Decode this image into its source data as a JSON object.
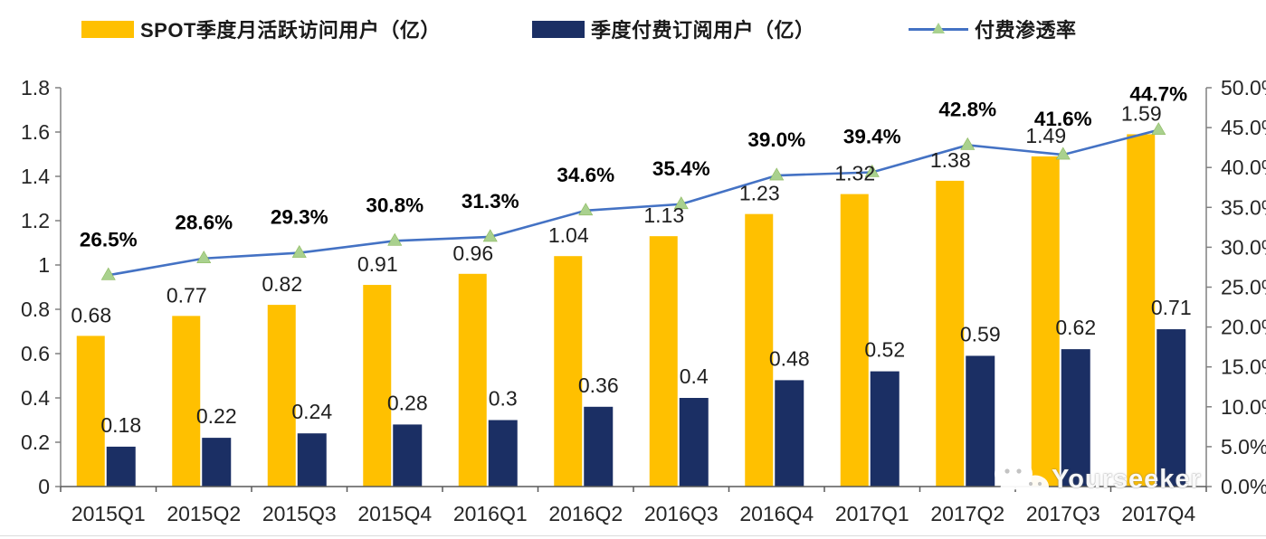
{
  "colors": {
    "mau_bar": "#FFC000",
    "sub_bar": "#1B2F64",
    "line": "#4472C4",
    "marker": "#A9D18E",
    "axis_side": "#808080",
    "axis_bottom": "#595959",
    "tick_text": "#262626",
    "label_text": "#1f1f1f",
    "pct_text": "#000000"
  },
  "legend": [
    {
      "label": "SPOT季度月活跃访问用户（亿）",
      "type": "bar",
      "color": "#FFC000"
    },
    {
      "label": "季度付费订阅用户（亿）",
      "type": "bar",
      "color": "#1B2F64"
    },
    {
      "label": "付费渗透率",
      "type": "line",
      "color": "#4472C4"
    }
  ],
  "watermark": {
    "icon": "wechat-icon",
    "text": "Yourseeker"
  },
  "chart_data": {
    "type": "bar+line combo",
    "title": "",
    "categories": [
      "2015Q1",
      "2015Q2",
      "2015Q3",
      "2015Q4",
      "2016Q1",
      "2016Q2",
      "2016Q3",
      "2016Q4",
      "2017Q1",
      "2017Q2",
      "2017Q3",
      "2017Q4"
    ],
    "series": [
      {
        "name": "SPOT季度月活跃访问用户（亿）",
        "type": "bar",
        "axis": "left",
        "color": "#FFC000",
        "values": [
          0.68,
          0.77,
          0.82,
          0.91,
          0.96,
          1.04,
          1.13,
          1.23,
          1.32,
          1.38,
          1.49,
          1.59
        ],
        "labels": [
          "0.68",
          "0.77",
          "0.82",
          "0.91",
          "0.96",
          "1.04",
          "1.13",
          "1.23",
          "1.32",
          "1.38",
          "1.49",
          "1.59"
        ]
      },
      {
        "name": "季度付费订阅用户（亿）",
        "type": "bar",
        "axis": "left",
        "color": "#1B2F64",
        "values": [
          0.18,
          0.22,
          0.24,
          0.28,
          0.3,
          0.36,
          0.4,
          0.48,
          0.52,
          0.59,
          0.62,
          0.71
        ],
        "labels": [
          "0.18",
          "0.22",
          "0.24",
          "0.28",
          "0.3",
          "0.36",
          "0.4",
          "0.48",
          "0.52",
          "0.59",
          "0.62",
          "0.71"
        ]
      },
      {
        "name": "付费渗透率",
        "type": "line",
        "axis": "right",
        "color": "#4472C4",
        "marker": "triangle",
        "marker_color": "#A9D18E",
        "values": [
          26.5,
          28.6,
          29.3,
          30.8,
          31.3,
          34.6,
          35.4,
          39.0,
          39.4,
          42.8,
          41.6,
          44.7
        ],
        "labels": [
          "26.5%",
          "28.6%",
          "29.3%",
          "30.8%",
          "31.3%",
          "34.6%",
          "35.4%",
          "39.0%",
          "39.4%",
          "42.8%",
          "41.6%",
          "44.7%"
        ]
      }
    ],
    "left_axis": {
      "min": 0,
      "max": 1.8,
      "step": 0.2,
      "ticks": [
        "0",
        "0.2",
        "0.4",
        "0.6",
        "0.8",
        "1",
        "1.2",
        "1.4",
        "1.6",
        "1.8"
      ]
    },
    "right_axis": {
      "min": 0,
      "max": 50,
      "step": 5,
      "ticks": [
        "0.0%",
        "5.0%",
        "10.0%",
        "15.0%",
        "20.0%",
        "25.0%",
        "30.0%",
        "35.0%",
        "40.0%",
        "45.0%",
        "50.0%"
      ]
    },
    "grid": false,
    "legend_position": "top"
  }
}
